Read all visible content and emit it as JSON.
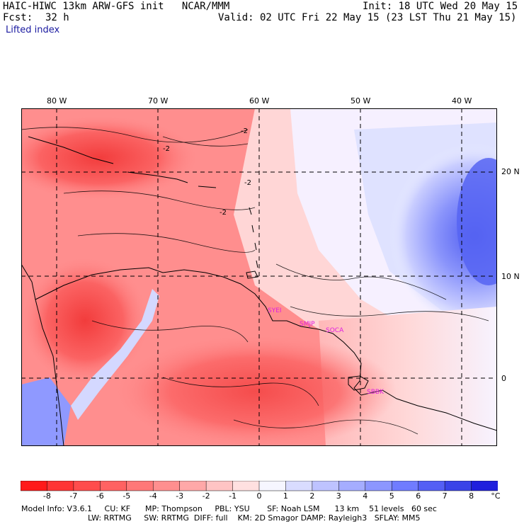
{
  "header": {
    "title": "HAIC-HIWC 13km ARW-GFS init   NCAR/MMM",
    "init": "Init: 18 UTC Wed 20 May 15",
    "fcst_label": "Fcst:",
    "fcst_value": "32 h",
    "valid": "Valid: 02 UTC Fri 22 May 15 (23 LST Thu 21 May 15)",
    "field": "Lifted index"
  },
  "axes": {
    "lon_labels": [
      "80 W",
      "70 W",
      "60 W",
      "50 W",
      "40 W"
    ],
    "lat_labels": [
      "20 N",
      "10 N",
      "0"
    ]
  },
  "stations": [
    "SYEI",
    "SMJP",
    "SOCA",
    "SBBK"
  ],
  "colorbar": {
    "labels": [
      "-8",
      "-7",
      "-6",
      "-5",
      "-4",
      "-3",
      "-2",
      "-1",
      "0",
      "1",
      "2",
      "3",
      "4",
      "5",
      "6",
      "7",
      "8"
    ],
    "unit": "°C",
    "colors": [
      "#ff1a1a",
      "#ff3535",
      "#ff4c4c",
      "#ff6262",
      "#ff7878",
      "#ff8f8f",
      "#ffa8a8",
      "#ffc4c4",
      "#ffe0e0",
      "#f6f6ff",
      "#d9dcff",
      "#bec3ff",
      "#a5adff",
      "#8c96ff",
      "#707cff",
      "#545ff5",
      "#3a44e8",
      "#2020dd"
    ]
  },
  "model_info": {
    "line1": "Model Info: V3.6.1     CU: KF      MP: Thompson     PBL: YSU       SF: Noah LSM      13 km    51 levels   60 sec",
    "line2": "LW: RRTMG     SW: RRTMG  DIFF: full    KM: 2D Smagor DAMP: Rayleigh3   SFLAY: MM5"
  }
}
